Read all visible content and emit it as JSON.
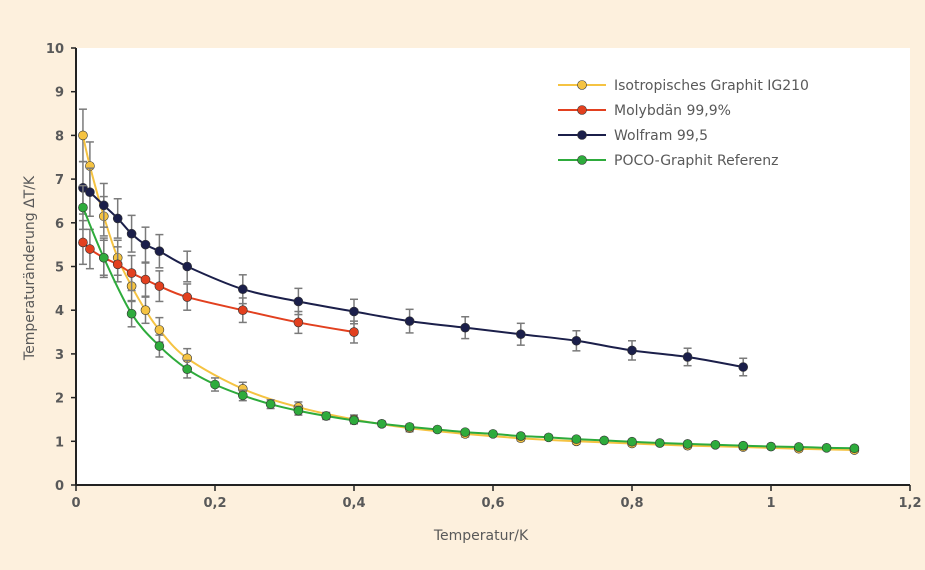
{
  "chart_data": {
    "type": "line",
    "xlabel": "Temperatur/K",
    "ylabel": "Temperaturänderung ΔT/K",
    "xlim": [
      0,
      1.2
    ],
    "ylim": [
      0,
      10
    ],
    "xticks": [
      "0",
      "0,2",
      "0,4",
      "0,6",
      "0,8",
      "1",
      "1,2"
    ],
    "yticks": [
      "0",
      "1",
      "2",
      "3",
      "4",
      "5",
      "6",
      "7",
      "8",
      "9",
      "10"
    ],
    "grid": false,
    "legend_position": "top-right",
    "series": [
      {
        "name": "Isotropisches Graphit IG210",
        "color": "#f5c342",
        "x": [
          0.01,
          0.02,
          0.04,
          0.06,
          0.08,
          0.1,
          0.12,
          0.16,
          0.24,
          0.32,
          0.4,
          0.48,
          0.56,
          0.64,
          0.72,
          0.8,
          0.88,
          0.96,
          1.04,
          1.12
        ],
        "y": [
          8.0,
          7.3,
          6.15,
          5.2,
          4.55,
          4.0,
          3.55,
          2.9,
          2.2,
          1.78,
          1.5,
          1.3,
          1.17,
          1.07,
          1.0,
          0.95,
          0.9,
          0.87,
          0.83,
          0.8
        ],
        "err": [
          0.6,
          0.55,
          0.45,
          0.4,
          0.35,
          0.3,
          0.28,
          0.22,
          0.15,
          0.12,
          0.1,
          0.08,
          0.07,
          0.06,
          0.06,
          0.05,
          0.05,
          0.05,
          0.05,
          0.05
        ],
        "markers": true
      },
      {
        "name": "Molybdän 99,9%",
        "color": "#e2401f",
        "x": [
          0.01,
          0.02,
          0.04,
          0.06,
          0.08,
          0.1,
          0.12,
          0.16,
          0.24,
          0.32,
          0.4
        ],
        "y": [
          5.55,
          5.4,
          5.2,
          5.05,
          4.85,
          4.7,
          4.55,
          4.3,
          4.0,
          3.72,
          3.5
        ],
        "err": [
          0.5,
          0.45,
          0.45,
          0.4,
          0.4,
          0.38,
          0.35,
          0.3,
          0.28,
          0.25,
          0.25
        ],
        "markers": true
      },
      {
        "name": "Wolfram 99,5",
        "color": "#1b1f4a",
        "x": [
          0.01,
          0.02,
          0.04,
          0.06,
          0.08,
          0.1,
          0.12,
          0.16,
          0.24,
          0.32,
          0.4,
          0.48,
          0.56,
          0.64,
          0.72,
          0.8,
          0.88,
          0.96
        ],
        "y": [
          6.8,
          6.7,
          6.4,
          6.1,
          5.75,
          5.5,
          5.35,
          5.0,
          4.48,
          4.2,
          3.97,
          3.75,
          3.6,
          3.45,
          3.3,
          3.08,
          2.93,
          2.7
        ],
        "err": [
          0.6,
          0.55,
          0.5,
          0.45,
          0.42,
          0.4,
          0.38,
          0.35,
          0.33,
          0.3,
          0.28,
          0.27,
          0.25,
          0.25,
          0.23,
          0.22,
          0.2,
          0.2
        ],
        "markers": true
      },
      {
        "name": "POCO-Graphit Referenz",
        "color": "#2eab3c",
        "x": [
          0.01,
          0.04,
          0.08,
          0.12,
          0.16,
          0.2,
          0.24,
          0.28,
          0.32,
          0.36,
          0.4,
          0.44,
          0.48,
          0.52,
          0.56,
          0.6,
          0.64,
          0.68,
          0.72,
          0.76,
          0.8,
          0.84,
          0.88,
          0.92,
          0.96,
          1.0,
          1.04,
          1.08,
          1.12
        ],
        "y": [
          6.35,
          5.2,
          3.92,
          3.18,
          2.65,
          2.3,
          2.05,
          1.85,
          1.7,
          1.58,
          1.48,
          1.4,
          1.33,
          1.27,
          1.21,
          1.17,
          1.12,
          1.09,
          1.05,
          1.02,
          0.99,
          0.96,
          0.94,
          0.92,
          0.9,
          0.88,
          0.87,
          0.85,
          0.84
        ],
        "err": [
          0.5,
          0.4,
          0.3,
          0.25,
          0.2,
          0.15,
          0.12,
          0.1,
          0.1,
          0.08,
          0.07,
          0.06,
          0.06,
          0.05,
          0.05,
          0.05,
          0.05,
          0.05,
          0.05,
          0.05,
          0.05,
          0.05,
          0.05,
          0.05,
          0.05,
          0.05,
          0.05,
          0.05,
          0.05
        ],
        "markers": true
      }
    ]
  }
}
